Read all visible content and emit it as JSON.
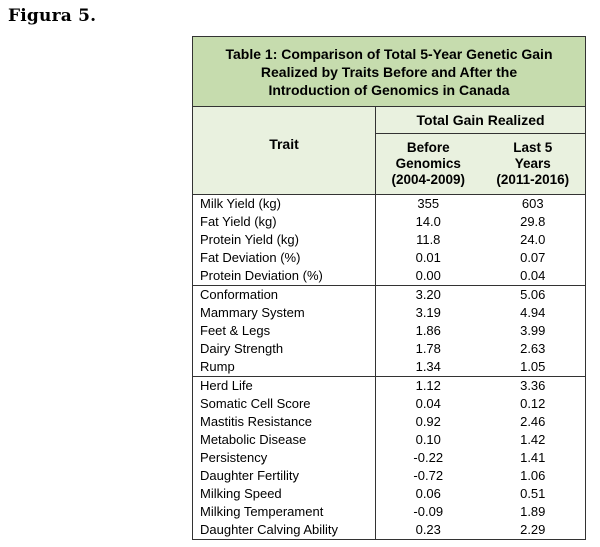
{
  "figure_label": "Figura 5.",
  "table": {
    "title": "Table 1: Comparison of Total 5-Year Genetic Gain\nRealized by Traits Before and After the\nIntroduction of Genomics in Canada",
    "header_trait": "Trait",
    "header_gain": "Total Gain Realized",
    "header_before": "Before\nGenomics\n(2004-2009)",
    "header_last5": "Last 5\nYears\n(2011-2016)",
    "groups": [
      {
        "rows": [
          {
            "trait": "Milk Yield (kg)",
            "before": "355",
            "last5": "603"
          },
          {
            "trait": "Fat Yield (kg)",
            "before": "14.0",
            "last5": "29.8"
          },
          {
            "trait": "Protein Yield (kg)",
            "before": "11.8",
            "last5": "24.0"
          },
          {
            "trait": "Fat Deviation (%)",
            "before": "0.01",
            "last5": "0.07"
          },
          {
            "trait": "Protein Deviation (%)",
            "before": "0.00",
            "last5": "0.04"
          }
        ]
      },
      {
        "rows": [
          {
            "trait": "Conformation",
            "before": "3.20",
            "last5": "5.06"
          },
          {
            "trait": "Mammary System",
            "before": "3.19",
            "last5": "4.94"
          },
          {
            "trait": "Feet & Legs",
            "before": "1.86",
            "last5": "3.99"
          },
          {
            "trait": "Dairy Strength",
            "before": "1.78",
            "last5": "2.63"
          },
          {
            "trait": "Rump",
            "before": "1.34",
            "last5": "1.05"
          }
        ]
      },
      {
        "rows": [
          {
            "trait": "Herd Life",
            "before": "1.12",
            "last5": "3.36"
          },
          {
            "trait": "Somatic Cell Score",
            "before": "0.04",
            "last5": "0.12"
          },
          {
            "trait": "Mastitis Resistance",
            "before": "0.92",
            "last5": "2.46"
          },
          {
            "trait": "Metabolic Disease",
            "before": "0.10",
            "last5": "1.42"
          },
          {
            "trait": "Persistency",
            "before": "-0.22",
            "last5": "1.41"
          },
          {
            "trait": "Daughter Fertility",
            "before": "-0.72",
            "last5": "1.06"
          },
          {
            "trait": "Milking Speed",
            "before": "0.06",
            "last5": "0.51"
          },
          {
            "trait": "Milking Temperament",
            "before": "-0.09",
            "last5": "1.89"
          },
          {
            "trait": "Daughter Calving Ability",
            "before": "0.23",
            "last5": "2.29"
          }
        ]
      }
    ]
  }
}
